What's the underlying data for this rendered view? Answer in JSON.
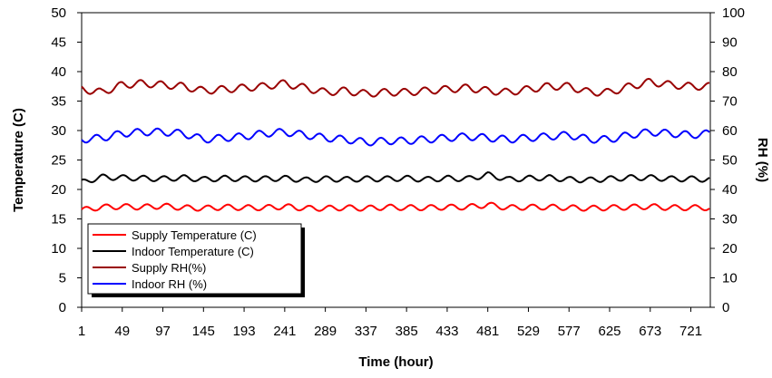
{
  "chart_data": {
    "type": "line",
    "title": "",
    "xlabel": "Time (hour)",
    "ylabel_left": "Temperature (C)",
    "ylabel_right": "RH (%)",
    "xlim": [
      1,
      744
    ],
    "ylim_left": [
      0,
      50
    ],
    "ylim_right": [
      0,
      100
    ],
    "x_ticks": [
      1,
      49,
      97,
      145,
      193,
      241,
      289,
      337,
      385,
      433,
      481,
      529,
      577,
      625,
      673,
      721
    ],
    "y_ticks_left": [
      0,
      5,
      10,
      15,
      20,
      25,
      30,
      35,
      40,
      45,
      50
    ],
    "y_ticks_right": [
      0,
      10,
      20,
      30,
      40,
      50,
      60,
      70,
      80,
      90,
      100
    ],
    "grid": false,
    "legend_position": "bottom-left",
    "series": [
      {
        "name": "Supply Temperature (C)",
        "axis": "left",
        "color": "#ff0000",
        "x": [
          1,
          25,
          49,
          73,
          97,
          121,
          145,
          169,
          193,
          217,
          241,
          265,
          289,
          313,
          337,
          361,
          385,
          409,
          433,
          457,
          481,
          505,
          529,
          553,
          577,
          601,
          625,
          649,
          673,
          697,
          721,
          744
        ],
        "values": [
          16.5,
          17.0,
          17.1,
          17.0,
          17.2,
          16.9,
          16.8,
          17.0,
          16.9,
          16.9,
          17.1,
          16.8,
          16.8,
          16.9,
          16.8,
          17.0,
          16.9,
          16.9,
          17.0,
          17.0,
          17.4,
          16.9,
          17.0,
          17.0,
          16.9,
          16.8,
          16.9,
          17.0,
          17.1,
          16.9,
          16.9,
          16.9
        ]
      },
      {
        "name": "Indoor Temperature (C)",
        "axis": "left",
        "color": "#000000",
        "x": [
          1,
          25,
          49,
          73,
          97,
          121,
          145,
          169,
          193,
          217,
          241,
          265,
          289,
          313,
          337,
          361,
          385,
          409,
          433,
          457,
          481,
          505,
          529,
          553,
          577,
          601,
          625,
          649,
          673,
          697,
          721,
          744
        ],
        "values": [
          21.2,
          22.1,
          22.0,
          21.9,
          21.8,
          22.0,
          21.7,
          21.9,
          21.8,
          21.8,
          21.9,
          21.6,
          21.8,
          21.7,
          21.8,
          21.8,
          21.9,
          21.7,
          21.9,
          21.8,
          22.5,
          21.7,
          21.9,
          22.0,
          21.7,
          21.6,
          21.8,
          22.0,
          22.0,
          21.8,
          21.8,
          21.7
        ]
      },
      {
        "name": "Supply RH(%)",
        "axis": "right",
        "color": "#990000",
        "x": [
          1,
          25,
          49,
          73,
          97,
          121,
          145,
          169,
          193,
          217,
          241,
          265,
          289,
          313,
          337,
          361,
          385,
          409,
          433,
          457,
          481,
          505,
          529,
          553,
          577,
          601,
          625,
          649,
          673,
          697,
          721,
          744
        ],
        "values": [
          74.0,
          73.0,
          75.5,
          76.0,
          75.5,
          75.0,
          73.5,
          74.0,
          74.5,
          75.0,
          76.0,
          74.5,
          73.0,
          73.5,
          72.5,
          73.0,
          73.0,
          73.5,
          74.0,
          74.5,
          73.5,
          73.0,
          74.0,
          75.0,
          75.0,
          73.0,
          73.0,
          75.0,
          76.5,
          75.5,
          75.0,
          75.0
        ]
      },
      {
        "name": "Indoor RH (%)",
        "axis": "right",
        "color": "#0000ff",
        "x": [
          1,
          25,
          49,
          73,
          97,
          121,
          145,
          169,
          193,
          217,
          241,
          265,
          289,
          313,
          337,
          361,
          385,
          409,
          433,
          457,
          481,
          505,
          529,
          553,
          577,
          601,
          625,
          649,
          673,
          697,
          721,
          744
        ],
        "values": [
          57.0,
          57.5,
          59.0,
          59.5,
          59.5,
          59.0,
          57.0,
          57.5,
          58.0,
          59.0,
          59.5,
          58.5,
          57.5,
          57.0,
          56.0,
          56.5,
          56.5,
          57.0,
          57.5,
          58.0,
          57.5,
          57.0,
          57.5,
          58.0,
          58.5,
          57.0,
          57.0,
          58.5,
          59.5,
          59.0,
          58.5,
          59.0
        ]
      }
    ]
  }
}
